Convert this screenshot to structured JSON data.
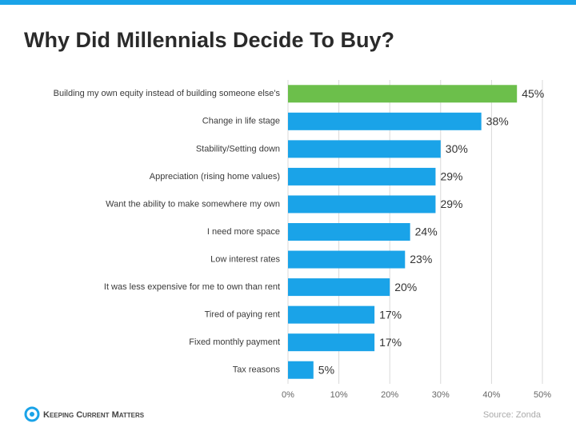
{
  "chart_data": {
    "type": "barh",
    "title": "Why Did Millennials Decide To Buy?",
    "categories": [
      "Building my own equity instead of building someone else's",
      "Change in life stage",
      "Stability/Setting down",
      "Appreciation (rising home values)",
      "Want the ability to make somewhere my own",
      "I need more space",
      "Low interest rates",
      "It was less expensive for me to own than rent",
      "Tired of paying rent",
      "Fixed monthly payment",
      "Tax reasons"
    ],
    "values": [
      45,
      38,
      30,
      29,
      29,
      24,
      23,
      20,
      17,
      17,
      5
    ],
    "value_labels": [
      "45%",
      "38%",
      "30%",
      "29%",
      "29%",
      "24%",
      "23%",
      "20%",
      "17%",
      "17%",
      "5%"
    ],
    "colors": [
      "#6cbf4b",
      "#1aa3e8",
      "#1aa3e8",
      "#1aa3e8",
      "#1aa3e8",
      "#1aa3e8",
      "#1aa3e8",
      "#1aa3e8",
      "#1aa3e8",
      "#1aa3e8",
      "#1aa3e8"
    ],
    "xlim": [
      0,
      50
    ],
    "xticks": [
      {
        "value": 0,
        "label": "0%"
      },
      {
        "value": 10,
        "label": "10%"
      },
      {
        "value": 20,
        "label": "20%"
      },
      {
        "value": 30,
        "label": "30%"
      },
      {
        "value": 40,
        "label": "40%"
      },
      {
        "value": 50,
        "label": "50%"
      }
    ],
    "grid": true,
    "source": "Source: Zonda",
    "logo": "Keeping Current Matters"
  }
}
